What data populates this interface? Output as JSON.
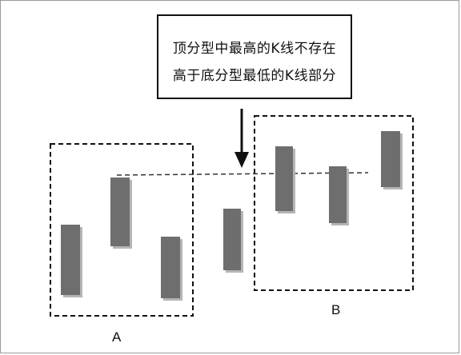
{
  "callout": {
    "line1": "顶分型中最高的K线不存在",
    "line2": "高于底分型最低的K线部分"
  },
  "labels": {
    "a": "A",
    "b": "B"
  },
  "colors": {
    "candle_fill": "#6e6e6e",
    "candle_shadow": "#b5b5b5",
    "border": "#111111"
  }
}
